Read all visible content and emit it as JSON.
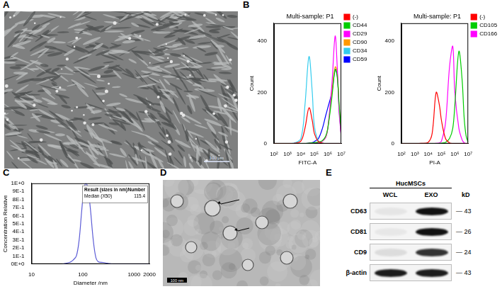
{
  "panel_labels": [
    "A",
    "B",
    "C",
    "D",
    "E"
  ],
  "micrograph": {
    "scale_bar": "100 μm"
  },
  "tem": {
    "scale_bar": "100 nm"
  },
  "blot": {
    "group": "HucMSCs",
    "lanes": [
      "WCL",
      "EXO"
    ],
    "unit": "kD",
    "rows": [
      {
        "name": "CD63",
        "kd": 43,
        "bands": [
          0.06,
          1.0
        ]
      },
      {
        "name": "CD81",
        "kd": 26,
        "bands": [
          0.05,
          1.0
        ]
      },
      {
        "name": "CD9",
        "kd": 24,
        "bands": [
          0.1,
          0.85
        ]
      },
      {
        "name": "β-actin",
        "kd": 43,
        "bands": [
          0.95,
          0.95
        ]
      }
    ]
  },
  "chart_data": [
    {
      "type": "line",
      "title": "Multi-sample: P1",
      "x_label": "FITC-A",
      "y_label": "Count",
      "log": "x",
      "grid": false,
      "legend": "right",
      "xlim": [
        100,
        10000000
      ],
      "xticks": [
        {
          "value": 100,
          "label": "10²"
        },
        {
          "value": 1000,
          "label": "10³"
        },
        {
          "value": 10000,
          "label": "10⁴"
        },
        {
          "value": 100000,
          "label": "10⁵"
        },
        {
          "value": 1000000,
          "label": "10⁶"
        },
        {
          "value": 10000000,
          "label": "10⁷"
        }
      ],
      "ylim": [
        0,
        470
      ],
      "yticks": [
        0,
        200,
        400
      ],
      "x": [
        100,
        300,
        1000,
        3000,
        10000,
        20000,
        40000,
        70000,
        100000,
        200000,
        400000,
        700000,
        1000000,
        2000000,
        3500000,
        5000000,
        7000000,
        10000000
      ],
      "series": [
        {
          "name": "(-)",
          "color": "#ff0000",
          "values": [
            0,
            0,
            0,
            1,
            10,
            60,
            140,
            90,
            40,
            8,
            2,
            0,
            0,
            0,
            0,
            0,
            0,
            0
          ]
        },
        {
          "name": "CD44",
          "color": "#00cc00",
          "values": [
            0,
            0,
            0,
            0,
            0,
            0,
            2,
            3,
            4,
            6,
            12,
            30,
            60,
            180,
            290,
            260,
            150,
            40
          ]
        },
        {
          "name": "CD29",
          "color": "#ff00ff",
          "values": [
            0,
            0,
            0,
            0,
            0,
            0,
            1,
            2,
            3,
            5,
            10,
            25,
            60,
            230,
            420,
            300,
            120,
            25
          ]
        },
        {
          "name": "CD90",
          "color": "#ff9900",
          "values": [
            0,
            0,
            0,
            0,
            0,
            0,
            1,
            2,
            3,
            5,
            10,
            25,
            60,
            200,
            300,
            280,
            140,
            30
          ]
        },
        {
          "name": "CD34",
          "color": "#33ccee",
          "values": [
            0,
            0,
            0,
            2,
            20,
            150,
            340,
            200,
            70,
            10,
            2,
            0,
            0,
            0,
            0,
            0,
            0,
            0
          ]
        },
        {
          "name": "CD59",
          "color": "#0000ff",
          "values": [
            0,
            0,
            0,
            0,
            0,
            0,
            2,
            4,
            8,
            20,
            60,
            110,
            140,
            200,
            290,
            270,
            130,
            30
          ]
        }
      ]
    },
    {
      "type": "line",
      "title": "Multi-sample: P1",
      "x_label": "PI-A",
      "y_label": "Count",
      "log": "x",
      "grid": false,
      "legend": "right",
      "xlim": [
        100,
        10000000
      ],
      "xticks": [
        {
          "value": 100,
          "label": "10²"
        },
        {
          "value": 1000,
          "label": "10³"
        },
        {
          "value": 10000,
          "label": "10⁴"
        },
        {
          "value": 100000,
          "label": "10⁵"
        },
        {
          "value": 1000000,
          "label": "10⁶"
        },
        {
          "value": 10000000,
          "label": "10⁷"
        }
      ],
      "ylim": [
        0,
        470
      ],
      "yticks": [
        0,
        200,
        400
      ],
      "x": [
        100,
        300,
        1000,
        3000,
        10000,
        20000,
        40000,
        70000,
        100000,
        200000,
        400000,
        700000,
        1000000,
        2000000,
        3500000,
        5000000,
        7000000,
        10000000
      ],
      "series": [
        {
          "name": "(-)",
          "color": "#ff0000",
          "values": [
            0,
            0,
            0,
            1,
            5,
            40,
            200,
            150,
            90,
            20,
            3,
            0,
            0,
            0,
            0,
            0,
            0,
            0
          ]
        },
        {
          "name": "CD105",
          "color": "#00cc00",
          "values": [
            0,
            0,
            0,
            0,
            0,
            0,
            0,
            1,
            2,
            5,
            20,
            60,
            150,
            360,
            250,
            100,
            30,
            5
          ]
        },
        {
          "name": "CD166",
          "color": "#ff00ff",
          "values": [
            0,
            0,
            0,
            0,
            0,
            0,
            1,
            3,
            10,
            80,
            300,
            380,
            200,
            60,
            15,
            3,
            0,
            0
          ]
        }
      ]
    },
    {
      "type": "line",
      "x_label": "Diameter /nm",
      "y_label": "Concentration Relative",
      "log": "x",
      "grid": false,
      "color": "#5b5bd6",
      "xlim": [
        10,
        2000
      ],
      "xticks": [
        10,
        100,
        1000,
        2000
      ],
      "ylim": [
        0,
        1
      ],
      "yticks": [
        {
          "value": 0,
          "label": "0E+0"
        },
        {
          "value": 0.1,
          "label": "1E-1"
        },
        {
          "value": 0.2,
          "label": "2E-1"
        },
        {
          "value": 0.3,
          "label": "3E-1"
        },
        {
          "value": 0.4,
          "label": "4E-1"
        },
        {
          "value": 0.5,
          "label": "5E-1"
        },
        {
          "value": 0.6,
          "label": "6E-1"
        },
        {
          "value": 0.7,
          "label": "7E-1"
        },
        {
          "value": 0.8,
          "label": "8E-1"
        },
        {
          "value": 0.9,
          "label": "9E-1"
        },
        {
          "value": 1,
          "label": "1E+0"
        }
      ],
      "x": [
        40,
        55,
        65,
        75,
        85,
        95,
        105,
        115,
        125,
        140,
        160,
        180,
        200,
        250,
        300,
        400,
        1000,
        2000
      ],
      "values": [
        0,
        0.02,
        0.05,
        0.1,
        0.3,
        0.65,
        0.92,
        1.0,
        0.95,
        0.7,
        0.3,
        0.08,
        0.03,
        0.02,
        0.01,
        0,
        0,
        0
      ],
      "annotation": {
        "title": "Result (sizes in nm)",
        "header": "Number",
        "rows": [
          {
            "label": "Median (X50)",
            "value": 115.4
          }
        ]
      }
    }
  ]
}
